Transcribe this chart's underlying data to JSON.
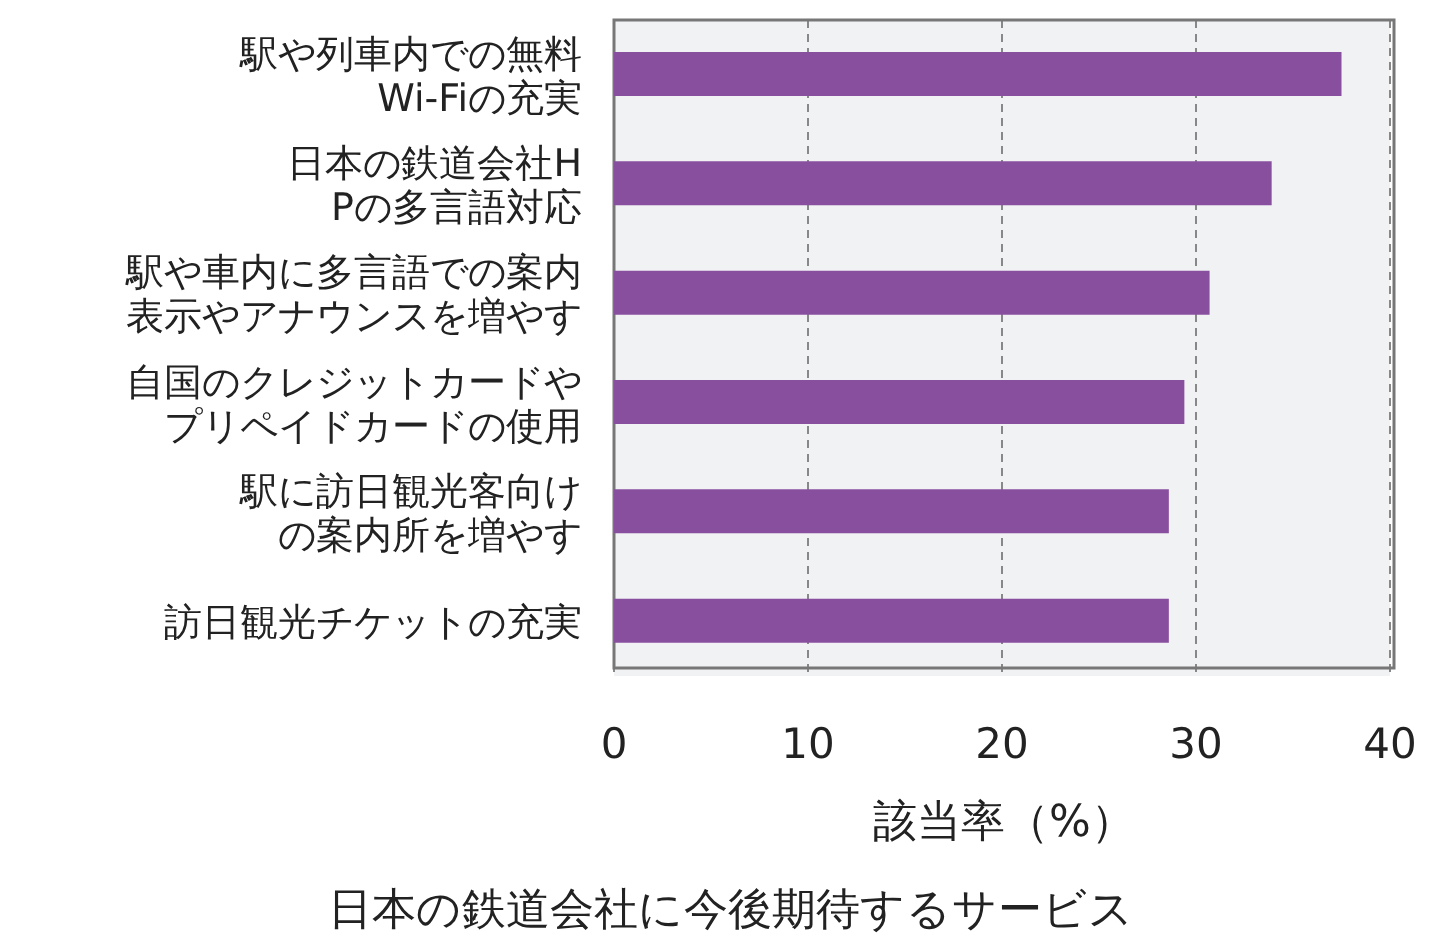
{
  "chart_data": {
    "type": "bar",
    "orientation": "horizontal",
    "title": "日本の鉄道会社に今後期待するサービス",
    "xlabel": "該当率（%）",
    "categories": [
      "駅や列車内での無料Wi-Fiの充実",
      "日本の鉄道会社HPの多言語対応",
      "駅や車内に多言語での案内表示やアナウンスを増やす",
      "自国のクレジットカードやプリペイドカードの使用",
      "駅に訪日観光客向けの案内所を増やす",
      "訪日観光チケットの充実"
    ],
    "values": [
      37.5,
      33.9,
      30.7,
      29.4,
      28.6,
      28.6
    ],
    "color": "#894f9f",
    "xlim": [
      0,
      40
    ],
    "xticks": [
      0,
      10,
      20,
      30,
      40
    ],
    "grid": "x"
  }
}
